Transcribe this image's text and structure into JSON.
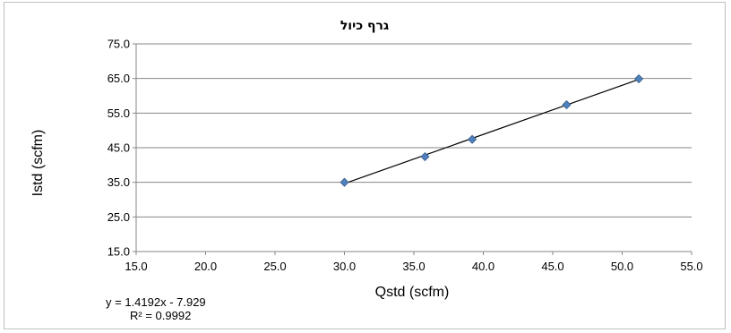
{
  "chart_data": {
    "type": "scatter",
    "title": "גרף כיול",
    "xlabel": "Qstd (scfm)",
    "ylabel": "Istd (scfm)",
    "xlim": [
      15.0,
      55.0
    ],
    "ylim": [
      15.0,
      75.0
    ],
    "xticks": [
      15.0,
      20.0,
      25.0,
      30.0,
      35.0,
      40.0,
      45.0,
      50.0,
      55.0
    ],
    "yticks": [
      15.0,
      25.0,
      35.0,
      45.0,
      55.0,
      65.0,
      75.0
    ],
    "tick_decimals": 1,
    "grid": "horizontal",
    "legend": "none",
    "marker": "diamond",
    "marker_color": "#4f81bd",
    "line_color": "#000000",
    "series": [
      {
        "x": [
          30.0,
          35.8,
          39.2,
          46.0,
          51.2
        ],
        "y": [
          35.0,
          42.4,
          47.4,
          57.4,
          64.9
        ]
      }
    ],
    "trendline": {
      "type": "linear",
      "slope": 1.4192,
      "intercept": -7.929,
      "x_range": [
        30.0,
        51.2
      ],
      "equation": "y = 1.4192x - 7.929",
      "r_squared": "R² = 0.9992"
    }
  }
}
